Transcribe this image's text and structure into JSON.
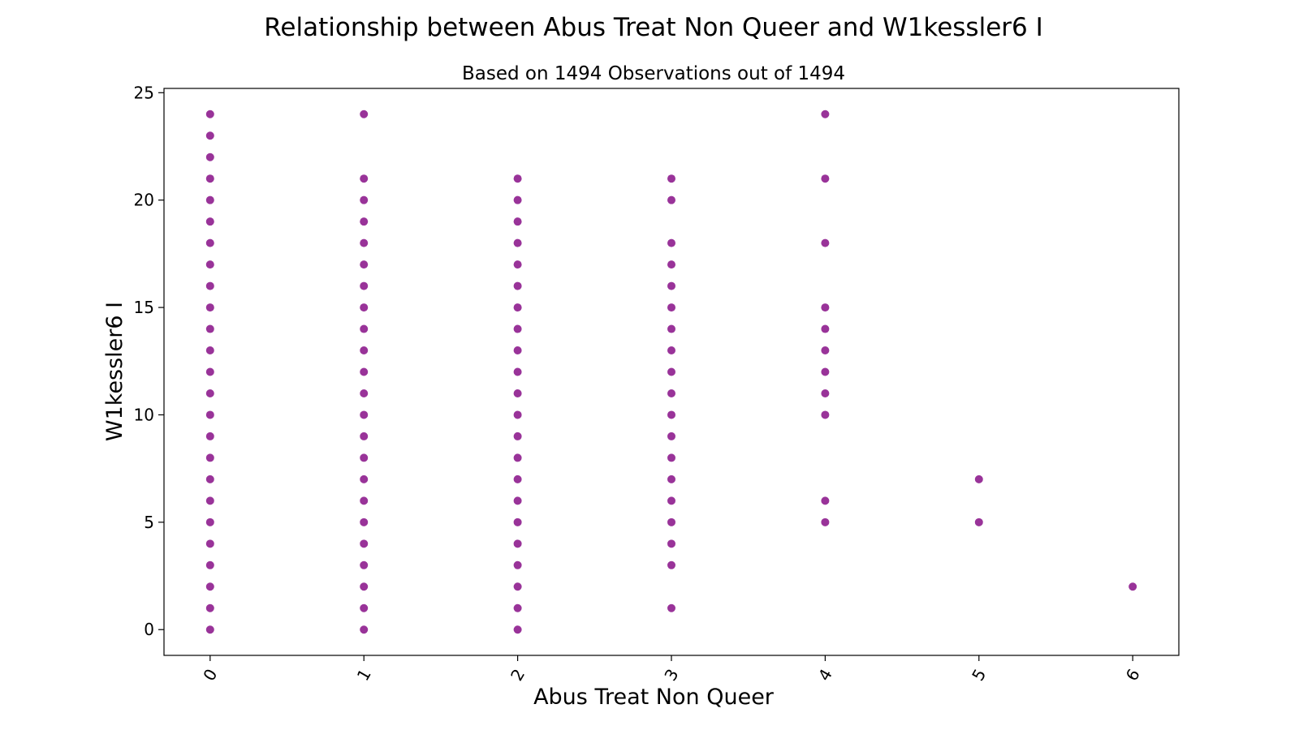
{
  "chart_data": {
    "type": "scatter",
    "title": "Relationship between Abus Treat Non Queer and W1kessler6 I",
    "subtitle": "Based on 1494 Observations out of 1494",
    "xlabel": "Abus Treat Non Queer",
    "ylabel": "W1kessler6 I",
    "xlim": [
      -0.3,
      6.3
    ],
    "ylim": [
      -1.2,
      25.2
    ],
    "xticks": [
      "0",
      "1",
      "2",
      "3",
      "4",
      "5",
      "6"
    ],
    "yticks": [
      "0",
      "5",
      "10",
      "15",
      "20",
      "25"
    ],
    "grid": false,
    "marker_color": "#800080",
    "points": [
      {
        "x": 0,
        "ys": [
          0,
          1,
          2,
          3,
          4,
          5,
          6,
          7,
          8,
          9,
          10,
          11,
          12,
          13,
          14,
          15,
          16,
          17,
          18,
          19,
          20,
          21,
          22,
          23,
          24
        ]
      },
      {
        "x": 1,
        "ys": [
          0,
          1,
          2,
          3,
          4,
          5,
          6,
          7,
          8,
          9,
          10,
          11,
          12,
          13,
          14,
          15,
          16,
          17,
          18,
          19,
          20,
          21,
          24
        ]
      },
      {
        "x": 2,
        "ys": [
          0,
          1,
          2,
          3,
          4,
          5,
          6,
          7,
          8,
          9,
          10,
          11,
          12,
          13,
          14,
          15,
          16,
          17,
          18,
          19,
          20,
          21
        ]
      },
      {
        "x": 3,
        "ys": [
          1,
          3,
          4,
          5,
          6,
          7,
          8,
          9,
          10,
          11,
          12,
          13,
          14,
          15,
          16,
          17,
          18,
          20,
          21
        ]
      },
      {
        "x": 4,
        "ys": [
          5,
          6,
          10,
          11,
          12,
          13,
          14,
          15,
          18,
          21,
          24
        ]
      },
      {
        "x": 5,
        "ys": [
          5,
          7
        ]
      },
      {
        "x": 6,
        "ys": [
          2
        ]
      }
    ]
  }
}
